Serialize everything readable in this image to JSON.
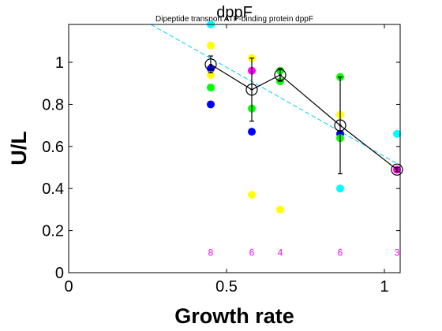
{
  "chart_data": {
    "type": "scatter",
    "title": "dppF",
    "subtitle": "Dipeptide transport ATP-binding protein dppF",
    "xlabel": "Growth rate",
    "ylabel": "U/L",
    "xlim": [
      0,
      1.05
    ],
    "ylim": [
      0,
      1.18
    ],
    "x_ticks": [
      "0",
      "0.5",
      "1"
    ],
    "y_ticks": [
      "0",
      "0.2",
      "0.4",
      "0.6",
      "0.8",
      "1"
    ],
    "grid": false,
    "points": [
      {
        "x": 0.45,
        "y": 1.18,
        "color": "#00ffff"
      },
      {
        "x": 0.45,
        "y": 1.08,
        "color": "#ffff00"
      },
      {
        "x": 0.45,
        "y": 0.97,
        "color": "#0000ff"
      },
      {
        "x": 0.45,
        "y": 0.94,
        "color": "#ffff00"
      },
      {
        "x": 0.45,
        "y": 0.88,
        "color": "#00ff00"
      },
      {
        "x": 0.45,
        "y": 0.8,
        "color": "#0000ff"
      },
      {
        "x": 0.58,
        "y": 1.02,
        "color": "#ffff00"
      },
      {
        "x": 0.58,
        "y": 0.96,
        "color": "#ff00ff"
      },
      {
        "x": 0.58,
        "y": 0.78,
        "color": "#00ff00"
      },
      {
        "x": 0.58,
        "y": 0.67,
        "color": "#0000ff"
      },
      {
        "x": 0.58,
        "y": 0.37,
        "color": "#ffff00"
      },
      {
        "x": 0.67,
        "y": 0.96,
        "color": "#00ff00"
      },
      {
        "x": 0.67,
        "y": 0.91,
        "color": "#00ff00"
      },
      {
        "x": 0.67,
        "y": 0.3,
        "color": "#ffff00"
      },
      {
        "x": 0.86,
        "y": 0.93,
        "color": "#00ff00"
      },
      {
        "x": 0.86,
        "y": 0.75,
        "color": "#ffff00"
      },
      {
        "x": 0.86,
        "y": 0.66,
        "color": "#0000ff"
      },
      {
        "x": 0.86,
        "y": 0.64,
        "color": "#00ff00"
      },
      {
        "x": 0.86,
        "y": 0.4,
        "color": "#00ffff"
      },
      {
        "x": 1.04,
        "y": 0.66,
        "color": "#00ffff"
      },
      {
        "x": 1.04,
        "y": 0.49,
        "color": "#ff00ff"
      }
    ],
    "means": [
      {
        "x": 0.45,
        "y": 0.99,
        "err": 0.04,
        "n": "8"
      },
      {
        "x": 0.58,
        "y": 0.87,
        "err": 0.15,
        "n": "6"
      },
      {
        "x": 0.67,
        "y": 0.94,
        "err": 0.03,
        "n": "4"
      },
      {
        "x": 0.86,
        "y": 0.7,
        "err": 0.23,
        "n": "6"
      },
      {
        "x": 1.04,
        "y": 0.49,
        "err": 0.01,
        "n": "3"
      }
    ],
    "fit_line": {
      "x": [
        0.26,
        1.05
      ],
      "y": [
        1.18,
        0.51
      ],
      "color": "#00ccff",
      "style": "dashed"
    },
    "mean_line_color": "#000000"
  }
}
